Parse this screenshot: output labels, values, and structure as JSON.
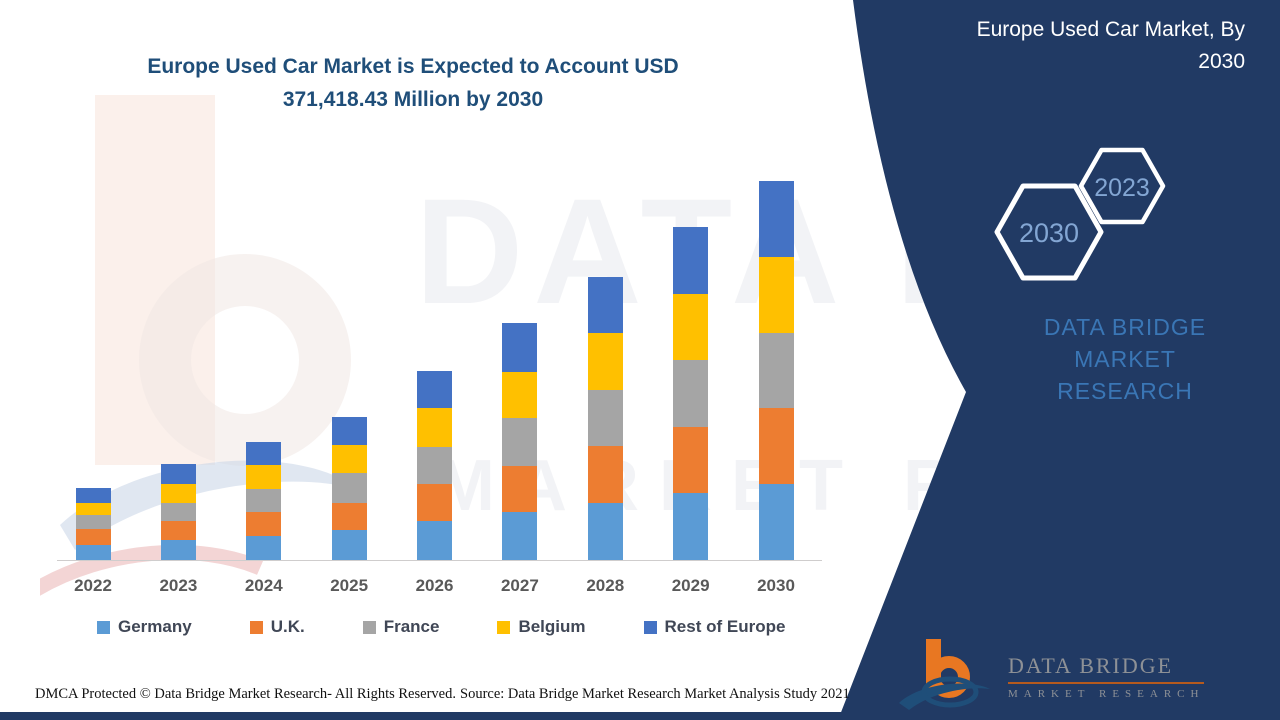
{
  "title": {
    "line1": "Europe Used Car Market is Expected to Account USD",
    "line2": "371,418.43 Million by 2030"
  },
  "panel": {
    "title_line1": "Europe Used Car Market, By",
    "title_line2": "2030",
    "hex_large_label": "2030",
    "hex_small_label": "2023",
    "brand_line1": "DATA BRIDGE MARKET",
    "brand_line2": "RESEARCH"
  },
  "logo": {
    "title": "DATA BRIDGE",
    "subtitle": "MARKET RESEARCH"
  },
  "watermark": {
    "line1": "DATA BRIDGE",
    "line2": "MARKET RESEARCH"
  },
  "footer": {
    "dmca": "DMCA Protected © Data Bridge Market Research- All Rights Reserved.",
    "source": "Source: Data Bridge Market Research Market Analysis Study 2021"
  },
  "colors": {
    "navy_panel": "#213a64",
    "title_blue": "#1f4e79",
    "brand_blue": "#3a76b5",
    "hex_number_blue": "#83a6d3",
    "logo_orange": "#e87722",
    "logo_navy": "#1f4e79"
  },
  "chart_data": {
    "type": "bar",
    "stacked": true,
    "unit": "USD Million",
    "title": "Europe Used Car Market is Expected to Account USD 371,418.43 Million by 2030",
    "stated_total_2030": "371,418.43",
    "y_axis_visible": false,
    "grid": false,
    "legend_position": "bottom",
    "categories": [
      "2022",
      "2023",
      "2024",
      "2025",
      "2026",
      "2027",
      "2028",
      "2029",
      "2030"
    ],
    "series": [
      {
        "name": "Germany",
        "color": "#5B9BD5",
        "values": [
          14400,
          19300,
          23500,
          29100,
          38500,
          46700,
          55500,
          65300,
          74100
        ]
      },
      {
        "name": "U.K.",
        "color": "#ED7D31",
        "values": [
          16300,
          18600,
          23800,
          27000,
          36000,
          45800,
          56200,
          65400,
          74500
        ]
      },
      {
        "name": "France",
        "color": "#A5A5A5",
        "values": [
          13100,
          18200,
          22300,
          29400,
          36600,
          47000,
          54900,
          65400,
          73500
        ]
      },
      {
        "name": "Belgium",
        "color": "#FFC000",
        "values": [
          12300,
          18600,
          23500,
          26900,
          37500,
          45100,
          55500,
          64700,
          75200
        ]
      },
      {
        "name": "Rest of Europe",
        "color": "#4472C4",
        "values": [
          14100,
          19000,
          22100,
          27700,
          37000,
          48000,
          55600,
          65300,
          74100
        ]
      }
    ],
    "totals_estimated": [
      70200,
      93700,
      115200,
      140100,
      185600,
      232600,
      277700,
      326100,
      371400
    ]
  }
}
